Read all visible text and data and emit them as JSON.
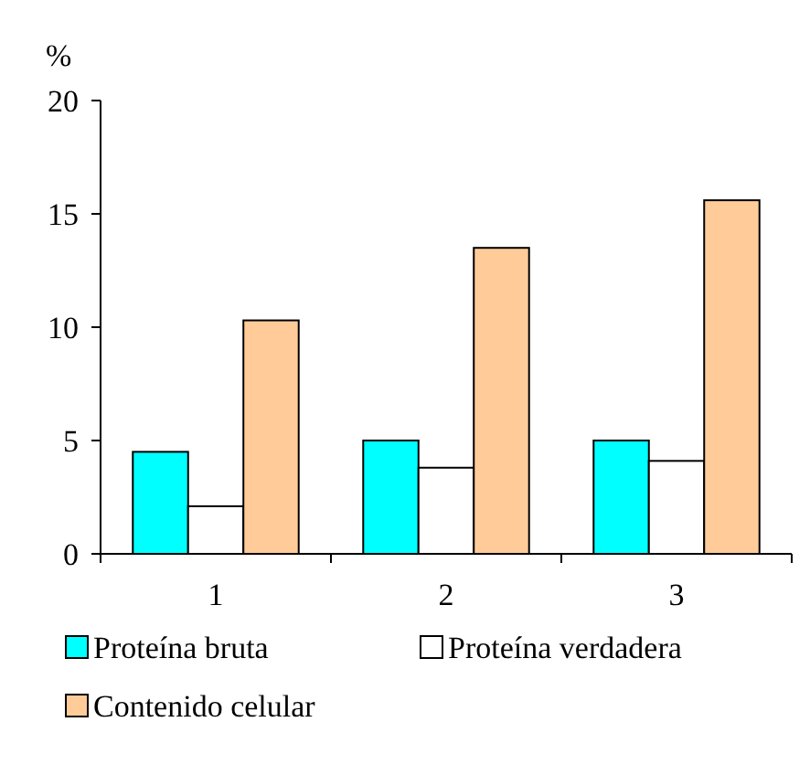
{
  "chart_data": {
    "type": "bar",
    "ylabel": "%",
    "categories": [
      "1",
      "2",
      "3"
    ],
    "series": [
      {
        "name": "Proteína bruta",
        "color": "#00ffff",
        "values": [
          4.5,
          5.0,
          5.0
        ]
      },
      {
        "name": "Proteína verdadera",
        "color": "#ffffff",
        "values": [
          2.1,
          3.8,
          4.1
        ]
      },
      {
        "name": "Contenido celular",
        "color": "#ffcc99",
        "values": [
          10.3,
          13.5,
          15.6
        ]
      }
    ],
    "ylim": [
      0,
      20
    ],
    "yticks": [
      0,
      5,
      10,
      15,
      20
    ],
    "grid": false,
    "legend": "bottom"
  }
}
